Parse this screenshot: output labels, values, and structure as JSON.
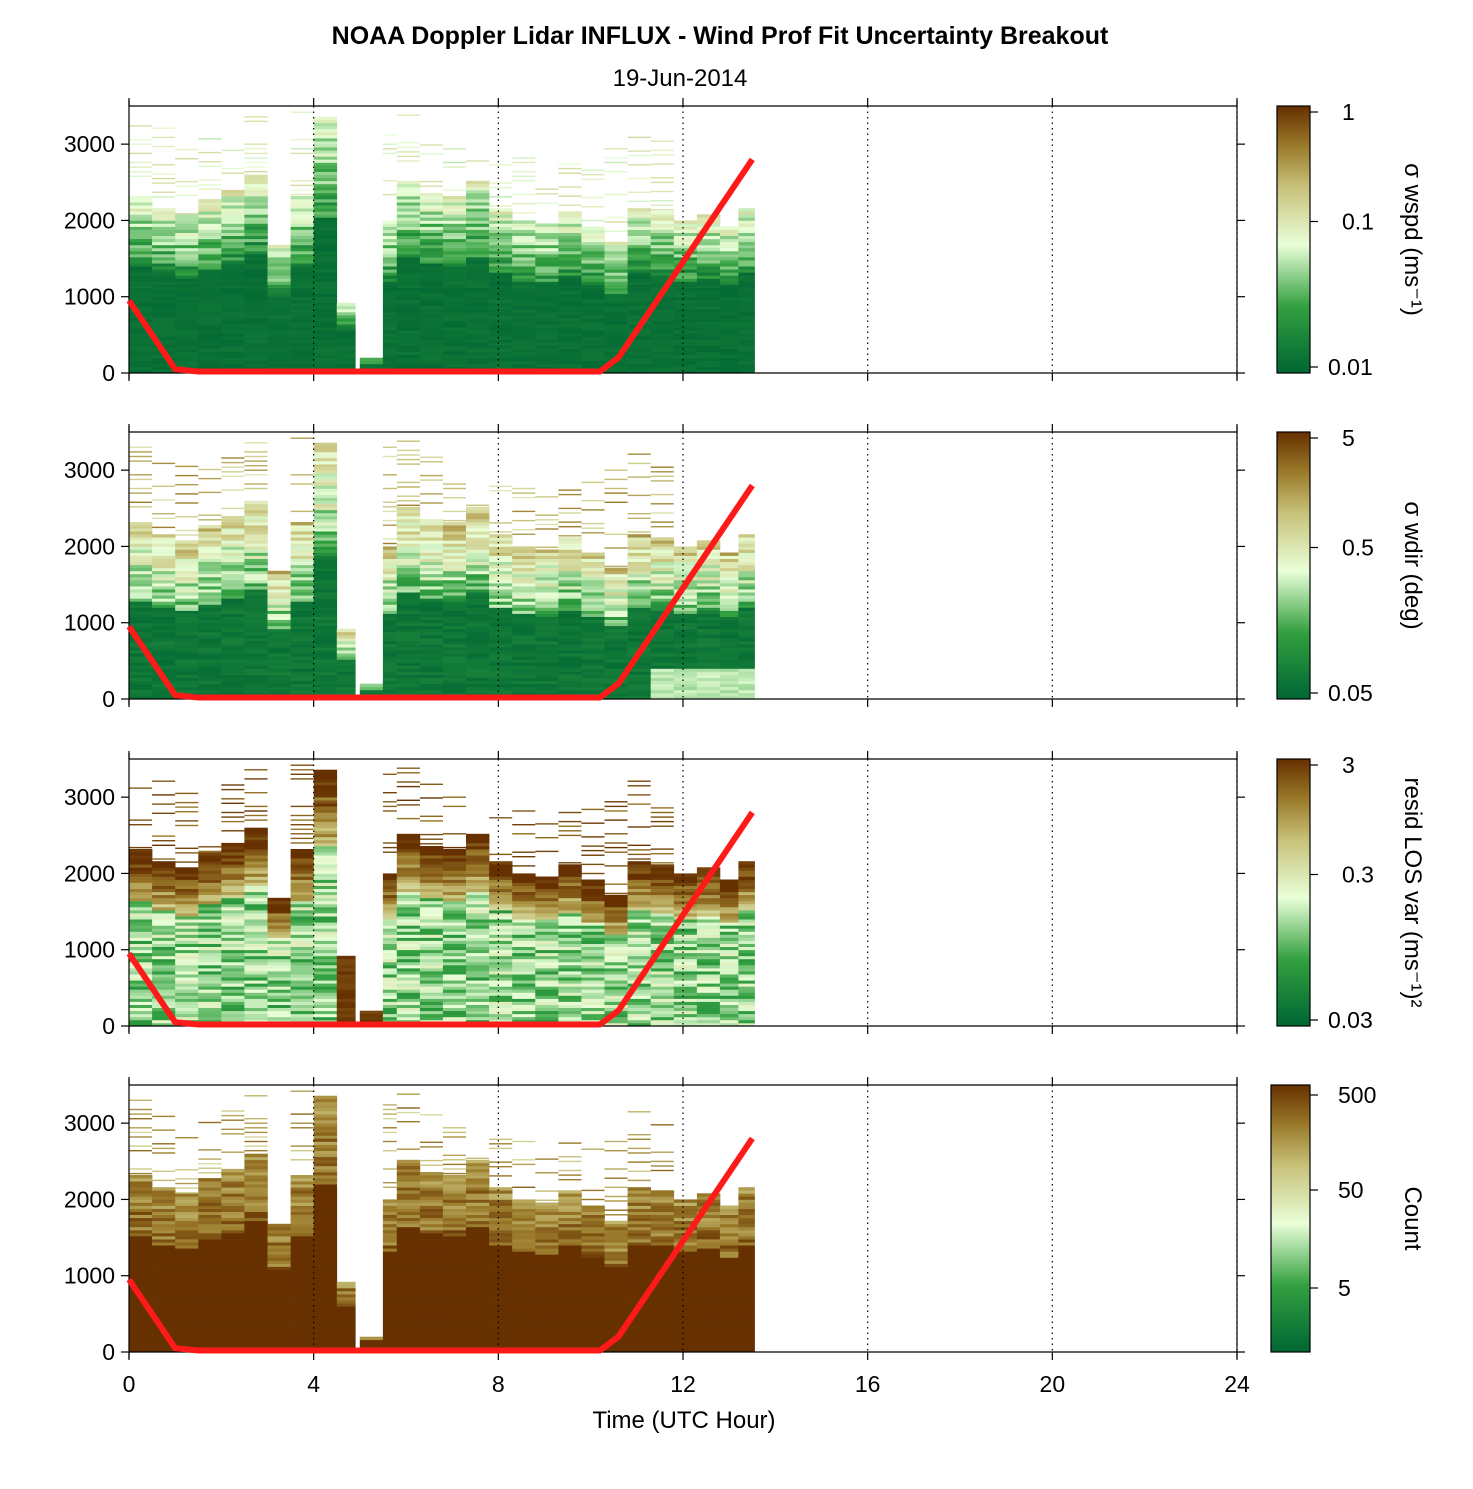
{
  "title": "NOAA Doppler Lidar INFLUX - Wind Prof Fit Uncertainty Breakout",
  "subtitle": "19-Jun-2014",
  "xlabel": "Time (UTC Hour)",
  "colors": {
    "line": "#ff1a1a",
    "cmap_low": "#006633",
    "cmap_mid": "#e9ffd8",
    "cmap_high": "#663000"
  },
  "chart_data": [
    {
      "type": "heatmap",
      "panel": "sigma-wspd",
      "xlim": [
        0,
        24
      ],
      "ylim": [
        0,
        3500
      ],
      "x_ticks": [
        0,
        4,
        8,
        12,
        16,
        20,
        24
      ],
      "y_ticks": [
        0,
        1000,
        2000,
        3000
      ],
      "y_tick_labels": [
        "0",
        "1000",
        "2000",
        "3000"
      ],
      "colorbar": {
        "label": "σ wspd (ms⁻¹)",
        "ticks": [
          "1",
          "0.1",
          "0.01"
        ],
        "scale": "log",
        "range": [
          0.01,
          1
        ]
      },
      "series": [
        {
          "x": [
            0,
            1,
            1.5,
            10.2,
            10.6,
            13.5
          ],
          "y": [
            950,
            50,
            20,
            20,
            200,
            2800
          ]
        }
      ]
    },
    {
      "type": "heatmap",
      "panel": "sigma-wdir",
      "xlim": [
        0,
        24
      ],
      "ylim": [
        0,
        3500
      ],
      "x_ticks": [
        0,
        4,
        8,
        12,
        16,
        20,
        24
      ],
      "y_ticks": [
        0,
        1000,
        2000,
        3000
      ],
      "y_tick_labels": [
        "0",
        "1000",
        "2000",
        "3000"
      ],
      "colorbar": {
        "label": "σ wdir (deg)",
        "ticks": [
          "5",
          "0.5",
          "0.05"
        ],
        "scale": "log",
        "range": [
          0.05,
          5
        ]
      },
      "series": [
        {
          "x": [
            0,
            1,
            1.5,
            10.2,
            10.6,
            13.5
          ],
          "y": [
            950,
            50,
            20,
            20,
            200,
            2800
          ]
        }
      ]
    },
    {
      "type": "heatmap",
      "panel": "resid-los-var",
      "xlim": [
        0,
        24
      ],
      "ylim": [
        0,
        3500
      ],
      "x_ticks": [
        0,
        4,
        8,
        12,
        16,
        20,
        24
      ],
      "y_ticks": [
        0,
        1000,
        2000,
        3000
      ],
      "y_tick_labels": [
        "0",
        "1000",
        "2000",
        "3000"
      ],
      "colorbar": {
        "label": "resid LOS var (ms⁻¹)²",
        "ticks": [
          "3",
          "0.3",
          "0.03"
        ],
        "scale": "log",
        "range": [
          0.03,
          3
        ]
      },
      "series": [
        {
          "x": [
            0,
            1,
            1.5,
            10.2,
            10.6,
            13.5
          ],
          "y": [
            950,
            50,
            20,
            20,
            200,
            2800
          ]
        }
      ]
    },
    {
      "type": "heatmap",
      "panel": "count",
      "xlim": [
        0,
        24
      ],
      "ylim": [
        0,
        3500
      ],
      "x_ticks": [
        0,
        4,
        8,
        12,
        16,
        20,
        24
      ],
      "x_tick_labels": [
        "0",
        "4",
        "8",
        "12",
        "16",
        "20",
        "24"
      ],
      "y_ticks": [
        0,
        1000,
        2000,
        3000
      ],
      "y_tick_labels": [
        "0",
        "1000",
        "2000",
        "3000"
      ],
      "colorbar": {
        "label": "Count",
        "ticks": [
          "500",
          "50",
          "5"
        ],
        "scale": "log",
        "range": [
          1,
          500
        ]
      },
      "series": [
        {
          "x": [
            0,
            1,
            1.5,
            10.2,
            10.6,
            13.5
          ],
          "y": [
            950,
            50,
            20,
            20,
            200,
            2800
          ]
        }
      ]
    }
  ],
  "data_columns": {
    "t_start": [
      0,
      0.5,
      1.0,
      1.5,
      2.0,
      2.5,
      3.0,
      3.5,
      4.0,
      4.5,
      5.0,
      5.5,
      5.8,
      6.3,
      6.8,
      7.3,
      7.8,
      8.3,
      8.8,
      9.3,
      9.8,
      10.3,
      10.8,
      11.3,
      11.8,
      12.3,
      12.8,
      13.2
    ],
    "t_end": [
      0.5,
      1.0,
      1.5,
      2.0,
      2.5,
      3.0,
      3.5,
      4.0,
      4.5,
      4.9,
      5.5,
      5.8,
      6.3,
      6.8,
      7.3,
      7.8,
      8.3,
      8.8,
      9.3,
      9.8,
      10.3,
      10.8,
      11.3,
      11.8,
      12.3,
      12.8,
      13.2,
      13.55
    ],
    "top_height": [
      2300,
      2150,
      2050,
      2250,
      2400,
      2600,
      1650,
      2300,
      3350,
      900,
      200,
      2000,
      2500,
      2350,
      2300,
      2500,
      2150,
      2000,
      1950,
      2100,
      1900,
      1700,
      2150,
      2100,
      2000,
      2050,
      1900,
      2150
    ],
    "sparse_top": [
      3300,
      3250,
      3100,
      3100,
      3200,
      3400,
      0,
      3450,
      3350,
      0,
      0,
      3300,
      3400,
      3200,
      3000,
      2800,
      2950,
      2850,
      2700,
      2800,
      2850,
      3000,
      3250,
      3050,
      0,
      0,
      0,
      0
    ]
  }
}
